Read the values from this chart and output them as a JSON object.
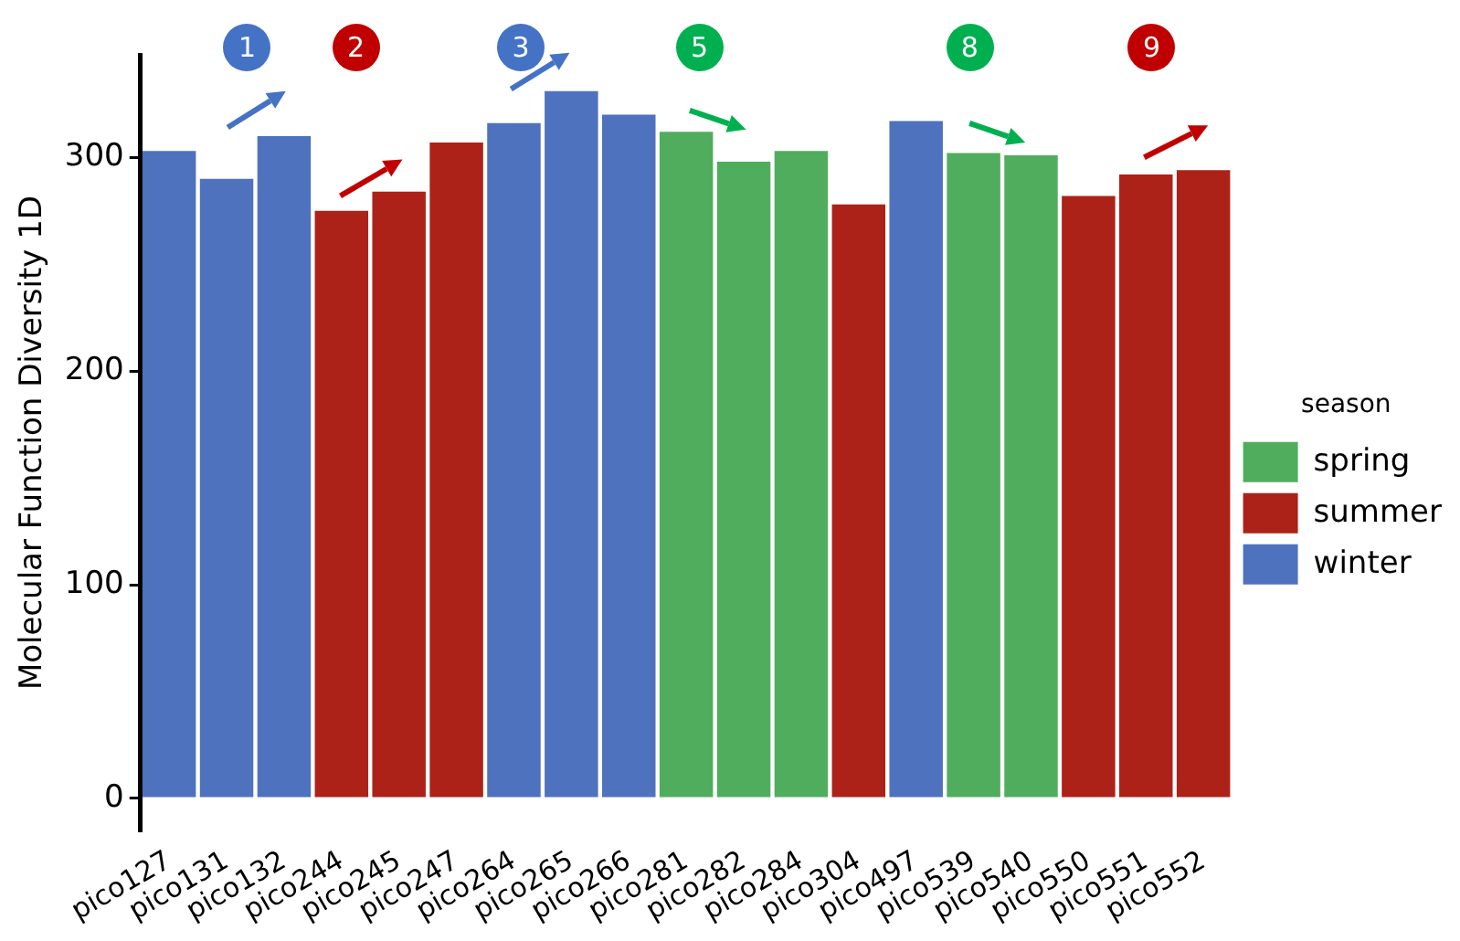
{
  "chart_data": {
    "type": "bar",
    "ylabel": "Molecular Function Diversity 1D",
    "legend_title": "season",
    "legend": "right",
    "grid": false,
    "categories": [
      "pico127",
      "pico131",
      "pico132",
      "pico244",
      "pico245",
      "pico247",
      "pico264",
      "pico265",
      "pico266",
      "pico281",
      "pico282",
      "pico284",
      "pico304",
      "pico497",
      "pico539",
      "pico540",
      "pico550",
      "pico551",
      "pico552"
    ],
    "series": [
      {
        "name": "spring",
        "color": "#50ad5e",
        "values": [
          null,
          null,
          null,
          null,
          null,
          null,
          null,
          null,
          null,
          312,
          298,
          303,
          null,
          null,
          302,
          301,
          null,
          null,
          null
        ]
      },
      {
        "name": "summer",
        "color": "#ac2218",
        "values": [
          null,
          null,
          null,
          275,
          284,
          307,
          null,
          null,
          null,
          null,
          null,
          null,
          278,
          null,
          null,
          null,
          282,
          292,
          294
        ]
      },
      {
        "name": "winter",
        "color": "#4e72be",
        "values": [
          303,
          290,
          310,
          null,
          null,
          null,
          316,
          331,
          320,
          null,
          null,
          null,
          null,
          317,
          null,
          null,
          null,
          null,
          null
        ]
      }
    ],
    "ylim": [
      -15,
      348
    ],
    "yticks": [
      0,
      100,
      200,
      300
    ],
    "annotations": [
      "1",
      "2",
      "3",
      "5",
      "8",
      "9"
    ]
  }
}
